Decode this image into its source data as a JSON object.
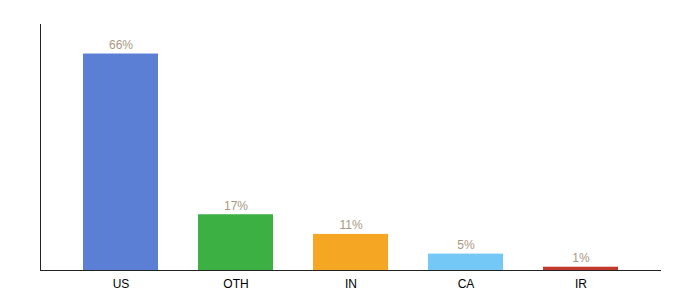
{
  "chart_data": {
    "type": "bar",
    "categories": [
      "US",
      "OTH",
      "IN",
      "CA",
      "IR"
    ],
    "values": [
      66,
      17,
      11,
      5,
      1
    ],
    "value_labels": [
      "66%",
      "17%",
      "11%",
      "5%",
      "1%"
    ],
    "colors": [
      "#5b7fd4",
      "#3cb043",
      "#f5a623",
      "#74c8f5",
      "#c0392b"
    ],
    "ylim": [
      0,
      75
    ],
    "data_labels": true,
    "tick_labels": "x",
    "grid": false
  }
}
